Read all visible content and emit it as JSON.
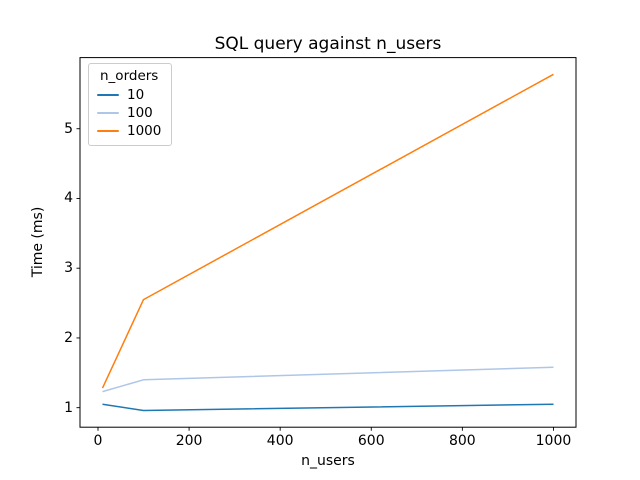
{
  "chart_data": {
    "type": "line",
    "title": "SQL query against n_users",
    "xlabel": "n_users",
    "ylabel": "Time (ms)",
    "x": [
      10,
      100,
      1000
    ],
    "series": [
      {
        "name": "10",
        "color": "#1f77b4",
        "values": [
          1.05,
          0.96,
          1.05
        ]
      },
      {
        "name": "100",
        "color": "#aec7e8",
        "values": [
          1.23,
          1.4,
          1.58
        ]
      },
      {
        "name": "1000",
        "color": "#ff7f0e",
        "values": [
          1.28,
          2.55,
          5.78
        ]
      }
    ],
    "legend_title": "n_orders",
    "legend_position": "upper left",
    "xlim": [
      -39.5,
      1049.5
    ],
    "ylim": [
      0.72,
      6.02
    ],
    "xticks": [
      0,
      200,
      400,
      600,
      800,
      1000
    ],
    "yticks": [
      1,
      2,
      3,
      4,
      5
    ],
    "grid": false,
    "line_width": 1.5,
    "axes_color": "#000000",
    "background": "#ffffff"
  }
}
